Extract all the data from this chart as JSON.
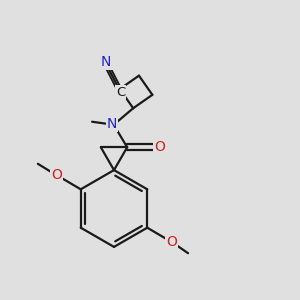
{
  "bg_color": "#e0e0e0",
  "bond_color": "#1a1a1a",
  "bond_width": 1.6,
  "N_color": "#2222cc",
  "O_color": "#cc2222",
  "C_color": "#1a1a1a",
  "fig_size": [
    3.0,
    3.0
  ],
  "dpi": 100,
  "xlim": [
    0,
    10
  ],
  "ylim": [
    0,
    10
  ]
}
